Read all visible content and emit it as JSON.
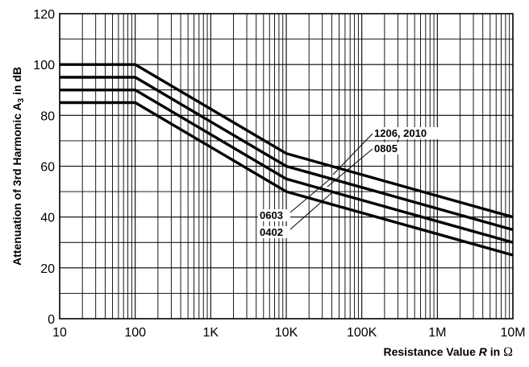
{
  "chart_data": {
    "type": "line",
    "xscale": "log",
    "xlim": [
      10,
      10000000
    ],
    "ylim": [
      0,
      120
    ],
    "xlabel_parts": [
      "Resistance Value ",
      "R",
      " in ",
      "Ω"
    ],
    "ylabel_parts": [
      "Attenuation of 3rd Harmonic A",
      "3",
      " in dB"
    ],
    "x_ticks": [
      {
        "value": 10,
        "label": "10"
      },
      {
        "value": 100,
        "label": "100"
      },
      {
        "value": 1000,
        "label": "1K"
      },
      {
        "value": 10000,
        "label": "10K"
      },
      {
        "value": 100000,
        "label": "100K"
      },
      {
        "value": 1000000,
        "label": "1M"
      },
      {
        "value": 10000000,
        "label": "10M"
      }
    ],
    "y_ticks": [
      0,
      20,
      40,
      60,
      80,
      100,
      120
    ],
    "grid": true,
    "series": [
      {
        "name": "1206, 2010",
        "points": [
          [
            10,
            100
          ],
          [
            100,
            100
          ],
          [
            10000,
            65
          ],
          [
            10000000,
            40
          ]
        ]
      },
      {
        "name": "0805",
        "points": [
          [
            10,
            95
          ],
          [
            100,
            95
          ],
          [
            10000,
            60
          ],
          [
            10000000,
            35
          ]
        ]
      },
      {
        "name": "0603",
        "points": [
          [
            10,
            90
          ],
          [
            100,
            90
          ],
          [
            10000,
            55
          ],
          [
            10000000,
            30
          ]
        ]
      },
      {
        "name": "0402",
        "points": [
          [
            10,
            85
          ],
          [
            100,
            85
          ],
          [
            10000,
            50
          ],
          [
            10000000,
            25
          ]
        ]
      }
    ],
    "annotations": [
      {
        "text": "1206, 2010",
        "series": "1206, 2010",
        "side": "upper"
      },
      {
        "text": "0805",
        "series": "0805",
        "side": "upper"
      },
      {
        "text": "0603",
        "series": "0603",
        "side": "lower"
      },
      {
        "text": "0402",
        "series": "0402",
        "side": "lower"
      }
    ]
  }
}
